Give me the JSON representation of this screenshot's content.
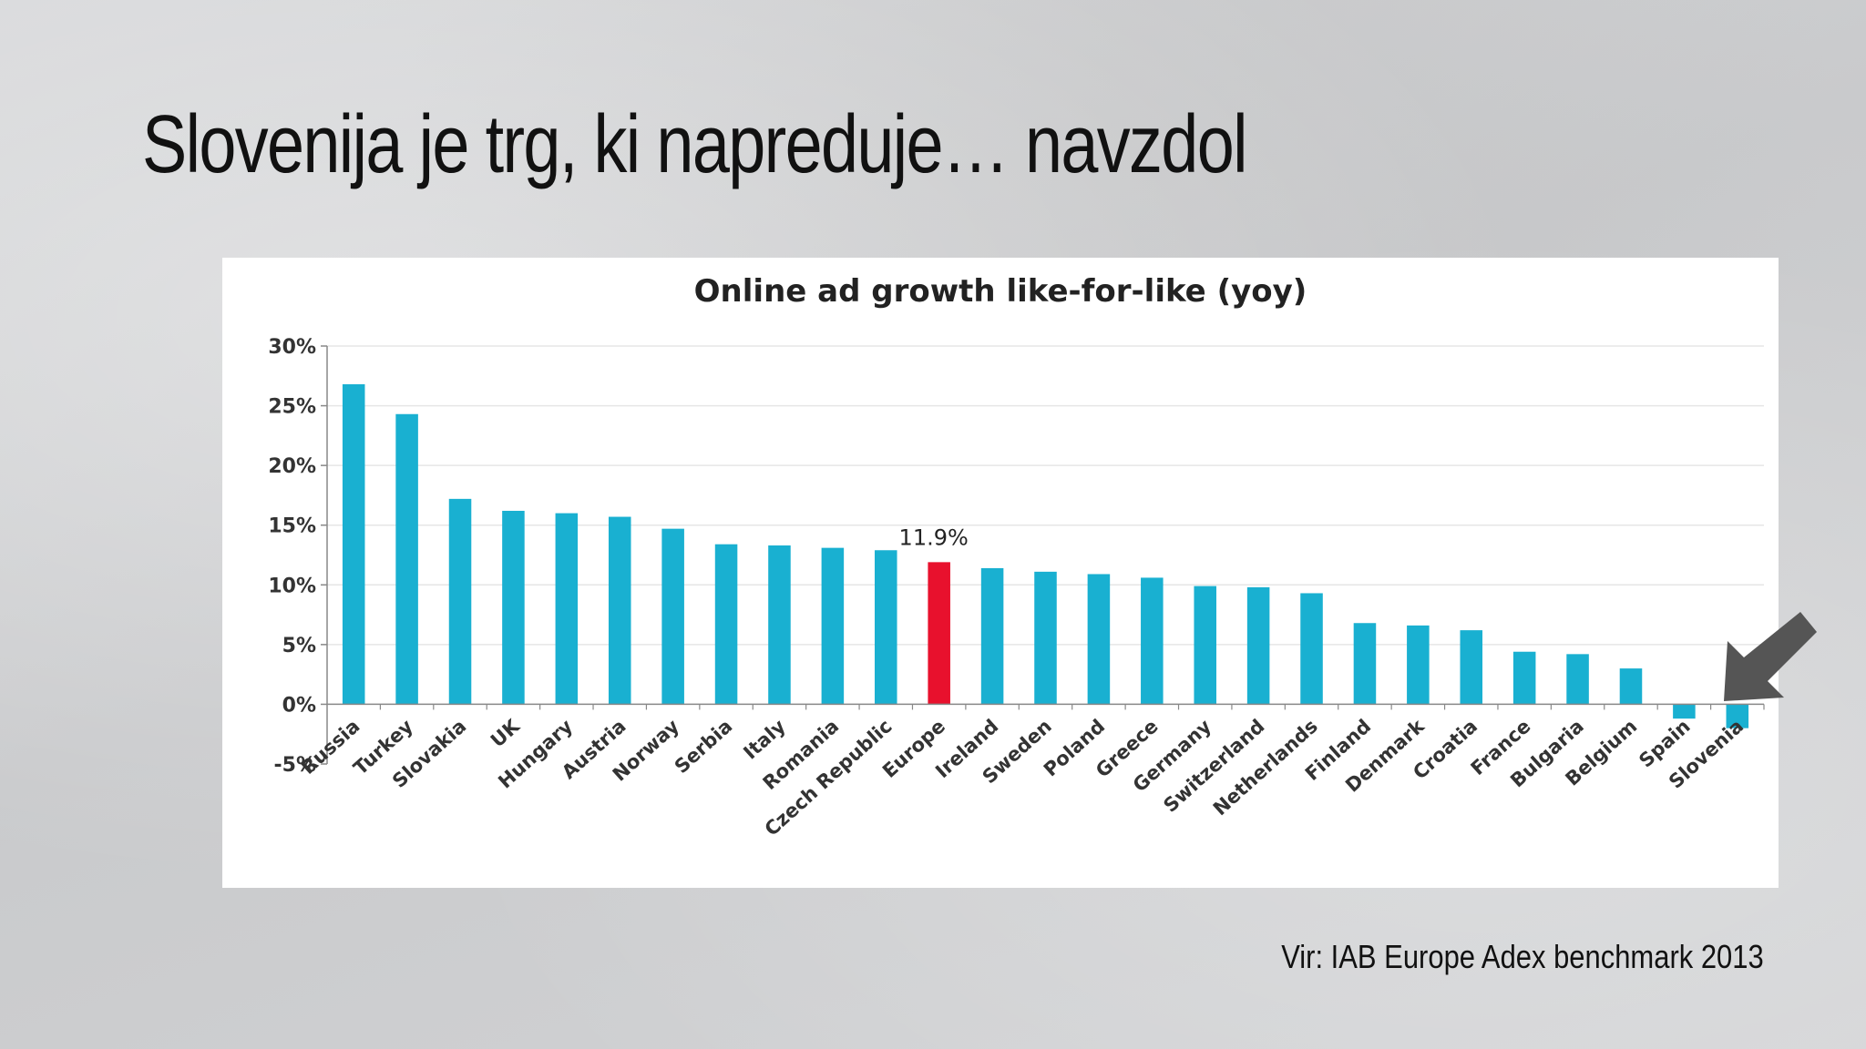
{
  "slide": {
    "title": "Slovenija je trg, ki napreduje… navzdol",
    "source": "Vir: IAB Europe Adex benchmark 2013"
  },
  "colors": {
    "bar": "#19b0d1",
    "highlight": "#e8112d",
    "arrow": "#555555",
    "grid": "#e6e6e6"
  },
  "icons": {
    "pointer": "down-left-arrow-icon"
  },
  "chart_data": {
    "type": "bar",
    "title": "Online ad growth like-for-like (yoy)",
    "xlabel": "",
    "ylabel": "",
    "ylim": [
      -5,
      30
    ],
    "yticks": [
      30,
      25,
      20,
      15,
      10,
      5,
      0,
      -5
    ],
    "ytick_labels": [
      "30%",
      "25%",
      "20%",
      "15%",
      "10%",
      "5%",
      "0%",
      "-5%"
    ],
    "grid": true,
    "highlight_category": "Europe",
    "categories": [
      "Russia",
      "Turkey",
      "Slovakia",
      "UK",
      "Hungary",
      "Austria",
      "Norway",
      "Serbia",
      "Italy",
      "Romania",
      "Czech Republic",
      "Europe",
      "Ireland",
      "Sweden",
      "Poland",
      "Greece",
      "Germany",
      "Switzerland",
      "Netherlands",
      "Finland",
      "Denmark",
      "Croatia",
      "France",
      "Bulgaria",
      "Belgium",
      "Spain",
      "Slovenia"
    ],
    "values": [
      26.8,
      24.3,
      17.2,
      16.2,
      16.0,
      15.7,
      14.7,
      13.4,
      13.3,
      13.1,
      12.9,
      11.9,
      11.4,
      11.1,
      10.9,
      10.6,
      9.9,
      9.8,
      9.3,
      6.8,
      6.6,
      6.2,
      4.4,
      4.2,
      3.0,
      -1.2,
      -2.0
    ],
    "annotations": [
      {
        "category": "Europe",
        "text": "11.9%"
      }
    ]
  }
}
